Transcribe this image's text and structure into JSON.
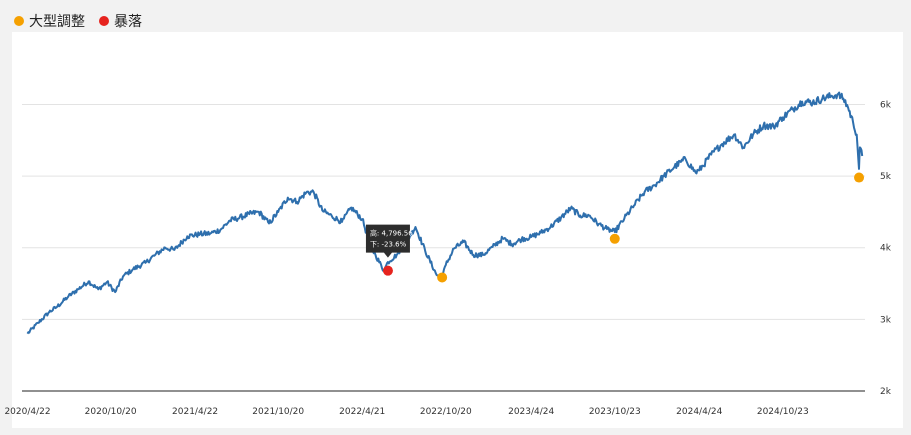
{
  "legend": {
    "items": [
      {
        "label": "大型調整",
        "color": "#f5a000"
      },
      {
        "label": "暴落",
        "color": "#e6231e"
      }
    ]
  },
  "chart_data": {
    "type": "line",
    "title": "",
    "xlabel": "",
    "ylabel": "",
    "line_color": "#2e6fad",
    "x_tick_labels": [
      "2020/4/22",
      "2020/10/20",
      "2021/4/22",
      "2021/10/20",
      "2022/4/21",
      "2022/10/20",
      "2023/4/24",
      "2023/10/23",
      "2024/4/24",
      "2024/10/23"
    ],
    "y_tick_labels": [
      "2k",
      "3k",
      "4k",
      "5k",
      "6k"
    ],
    "ylim": [
      2000,
      6900
    ],
    "x": [
      "2020-04-22",
      "2020-05-15",
      "2020-06-08",
      "2020-06-26",
      "2020-07-20",
      "2020-08-10",
      "2020-09-02",
      "2020-09-23",
      "2020-10-12",
      "2020-10-30",
      "2020-11-16",
      "2020-12-08",
      "2021-01-04",
      "2021-01-25",
      "2021-02-16",
      "2021-03-08",
      "2021-04-05",
      "2021-05-03",
      "2021-05-25",
      "2021-06-16",
      "2021-07-07",
      "2021-07-28",
      "2021-08-18",
      "2021-09-08",
      "2021-09-30",
      "2021-10-20",
      "2021-11-10",
      "2021-11-30",
      "2021-12-20",
      "2022-01-05",
      "2022-01-24",
      "2022-02-14",
      "2022-03-08",
      "2022-03-28",
      "2022-04-21",
      "2022-05-10",
      "2022-05-20",
      "2022-06-07",
      "2022-06-16",
      "2022-07-05",
      "2022-07-25",
      "2022-08-15",
      "2022-09-05",
      "2022-09-30",
      "2022-10-12",
      "2022-10-20",
      "2022-11-07",
      "2022-11-28",
      "2022-12-19",
      "2023-01-09",
      "2023-01-30",
      "2023-02-21",
      "2023-03-13",
      "2023-04-03",
      "2023-04-24",
      "2023-05-15",
      "2023-06-05",
      "2023-06-28",
      "2023-07-19",
      "2023-08-09",
      "2023-08-28",
      "2023-09-18",
      "2023-10-06",
      "2023-10-23",
      "2023-11-13",
      "2023-12-04",
      "2023-12-27",
      "2024-01-17",
      "2024-02-07",
      "2024-03-01",
      "2024-03-25",
      "2024-04-16",
      "2024-04-24",
      "2024-05-20",
      "2024-06-13",
      "2024-07-09",
      "2024-07-29",
      "2024-08-19",
      "2024-09-11",
      "2024-10-03",
      "2024-10-23",
      "2024-11-13",
      "2024-12-04",
      "2024-12-27",
      "2025-01-17",
      "2025-02-07",
      "2025-02-19",
      "2025-03-04",
      "2025-03-14",
      "2025-03-25",
      "2025-04-02",
      "2025-04-07",
      "2025-04-09",
      "2025-04-14"
    ],
    "series": [
      {
        "values": [
          2800,
          2950,
          3100,
          3180,
          3320,
          3420,
          3530,
          3420,
          3520,
          3380,
          3600,
          3700,
          3790,
          3900,
          4000,
          3970,
          4160,
          4190,
          4200,
          4250,
          4380,
          4420,
          4470,
          4500,
          4340,
          4500,
          4700,
          4640,
          4770,
          4780,
          4520,
          4440,
          4360,
          4560,
          4400,
          4010,
          3900,
          3680,
          3800,
          3900,
          4080,
          4290,
          3960,
          3620,
          3590,
          3760,
          3990,
          4080,
          3900,
          3900,
          4010,
          4130,
          4050,
          4120,
          4150,
          4210,
          4290,
          4420,
          4550,
          4450,
          4450,
          4330,
          4260,
          4220,
          4410,
          4590,
          4780,
          4870,
          5000,
          5130,
          5240,
          5050,
          5080,
          5300,
          5450,
          5580,
          5400,
          5580,
          5710,
          5690,
          5820,
          5930,
          6040,
          6030,
          6080,
          6120,
          6140,
          6080,
          5960,
          5750,
          5580,
          5100,
          5400,
          5280
        ]
      }
    ],
    "markers": [
      {
        "category": "暴落",
        "x": "2022-06-16",
        "y": 3680,
        "color": "#e6231e"
      },
      {
        "category": "大型調整",
        "x": "2022-10-12",
        "y": 3585,
        "color": "#f5a000"
      },
      {
        "category": "大型調整",
        "x": "2023-10-23",
        "y": 4125,
        "color": "#f5a000"
      },
      {
        "category": "大型調整",
        "x": "2025-04-07",
        "y": 4980,
        "color": "#f5a000"
      }
    ],
    "tooltip": {
      "line1": "高: 4,796.56",
      "line2": "下: -23.6%"
    },
    "grid": true,
    "legend_position": "top-left"
  }
}
